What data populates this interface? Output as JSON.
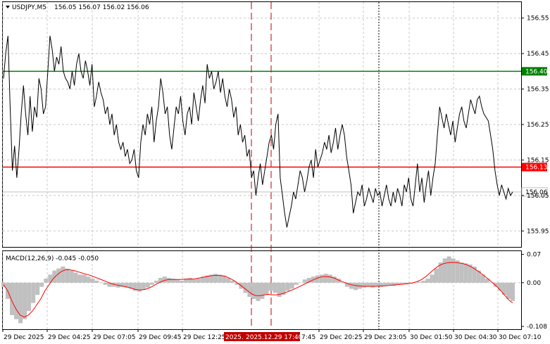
{
  "header": {
    "symbol": "USDJPY,M5",
    "ohlc": "156.05 156.07 156.02 156.06"
  },
  "colors": {
    "price_line": "#000000",
    "resistance": "#008000",
    "support": "#ff0000",
    "current": "#c0c0c0",
    "macd_hist": "#c0c0c0",
    "macd_signal": "#ff0000",
    "vline_red": "#c00000",
    "grid": "#c8c8c8"
  },
  "chart_data": [
    {
      "type": "line",
      "pane": "price",
      "y_ticks": [
        "156.55",
        "156.45",
        "156.35",
        "156.25",
        "156.15",
        "156.05",
        "155.95"
      ],
      "ylim": [
        155.905,
        156.595
      ],
      "levels": [
        {
          "value": 156.4,
          "label": "156.40",
          "color": "#008000"
        },
        {
          "value": 156.13,
          "label": "156.13",
          "color": "#ff0000"
        },
        {
          "value": 156.06,
          "label": "156.06",
          "color": "#c0c0c0"
        }
      ],
      "series": [
        {
          "values": [
            156.38,
            156.45,
            156.5,
            156.3,
            156.12,
            156.19,
            156.1,
            156.18,
            156.28,
            156.36,
            156.28,
            156.22,
            156.33,
            156.23,
            156.3,
            156.27,
            156.38,
            156.35,
            156.28,
            156.3,
            156.4,
            156.5,
            156.46,
            156.4,
            156.44,
            156.42,
            156.47,
            156.4,
            156.38,
            156.37,
            156.35,
            156.4,
            156.36,
            156.42,
            156.45,
            156.4,
            156.38,
            156.43,
            156.4,
            156.36,
            156.42,
            156.3,
            156.33,
            156.37,
            156.34,
            156.32,
            156.28,
            156.3,
            156.25,
            156.28,
            156.22,
            156.25,
            156.2,
            156.18,
            156.2,
            156.16,
            156.18,
            156.14,
            156.15,
            156.18,
            156.12,
            156.1,
            156.2,
            156.25,
            156.22,
            156.28,
            156.25,
            156.3,
            156.2,
            156.26,
            156.3,
            156.38,
            156.34,
            156.28,
            156.3,
            156.22,
            156.18,
            156.24,
            156.3,
            156.28,
            156.33,
            156.26,
            156.22,
            156.28,
            156.3,
            156.25,
            156.34,
            156.3,
            156.26,
            156.32,
            156.36,
            156.31,
            156.42,
            156.38,
            156.4,
            156.35,
            156.37,
            156.4,
            156.34,
            156.38,
            156.33,
            156.3,
            156.35,
            156.32,
            156.27,
            156.3,
            156.22,
            156.25,
            156.2,
            156.22,
            156.16,
            156.18,
            156.1,
            156.12,
            156.05,
            156.1,
            156.14,
            156.08,
            156.12,
            156.16,
            156.2,
            156.22,
            156.18,
            156.25,
            156.28,
            156.1,
            156.05,
            156.0,
            155.96,
            155.99,
            156.02,
            156.06,
            156.04,
            156.08,
            156.12,
            156.1,
            156.06,
            156.09,
            156.13,
            156.15,
            156.1,
            156.18,
            156.13,
            156.15,
            156.17,
            156.2,
            156.18,
            156.22,
            156.17,
            156.2,
            156.24,
            156.18,
            156.22,
            156.25,
            156.22,
            156.16,
            156.12,
            156.08,
            156.0,
            156.03,
            156.06,
            156.05,
            156.08,
            156.02,
            156.04,
            156.07,
            156.05,
            156.03,
            156.07,
            156.05,
            156.06,
            156.02,
            156.05,
            156.08,
            156.04,
            156.02,
            156.06,
            156.03,
            156.07,
            156.05,
            156.02,
            156.08,
            156.06,
            156.1,
            156.04,
            156.02,
            156.08,
            156.14,
            156.06,
            156.1,
            156.03,
            156.08,
            156.12,
            156.05,
            156.1,
            156.14,
            156.22,
            156.3,
            156.27,
            156.24,
            156.28,
            156.25,
            156.22,
            156.26,
            156.2,
            156.24,
            156.28,
            156.3,
            156.26,
            156.24,
            156.28,
            156.32,
            156.3,
            156.28,
            156.32,
            156.33,
            156.3,
            156.28,
            156.27,
            156.26,
            156.22,
            156.18,
            156.12,
            156.08,
            156.05,
            156.08,
            156.06,
            156.04,
            156.07,
            156.05,
            156.06
          ]
        }
      ]
    },
    {
      "type": "bar",
      "pane": "macd",
      "title": "MACD(12,26,9) -0.045 -0.050",
      "y_ticks": [
        "0.07",
        "0.00",
        "-0.108"
      ],
      "ylim": [
        -0.115,
        0.078
      ],
      "series": [
        {
          "name": "MACD",
          "type": "bar",
          "values": [
            -0.01,
            -0.04,
            -0.08,
            -0.09,
            -0.1,
            -0.09,
            -0.07,
            -0.05,
            -0.03,
            -0.01,
            0.01,
            0.02,
            0.03,
            0.035,
            0.04,
            0.035,
            0.03,
            0.025,
            0.02,
            0.02,
            0.015,
            0.01,
            0.005,
            0.0,
            -0.005,
            -0.01,
            -0.01,
            -0.012,
            -0.01,
            -0.012,
            -0.015,
            -0.02,
            -0.022,
            -0.018,
            -0.012,
            -0.005,
            0.005,
            0.012,
            0.015,
            0.012,
            0.01,
            0.008,
            0.005,
            0.01,
            0.012,
            0.008,
            0.01,
            0.015,
            0.018,
            0.02,
            0.022,
            0.02,
            0.018,
            0.012,
            0.005,
            -0.005,
            -0.015,
            -0.025,
            -0.035,
            -0.04,
            -0.045,
            -0.04,
            -0.03,
            -0.02,
            -0.025,
            -0.035,
            -0.03,
            -0.02,
            -0.015,
            -0.005,
            0.0,
            0.008,
            0.012,
            0.015,
            0.018,
            0.02,
            0.022,
            0.02,
            0.015,
            0.01,
            0.0,
            -0.01,
            -0.015,
            -0.018,
            -0.015,
            -0.012,
            -0.01,
            -0.012,
            -0.008,
            -0.01,
            -0.008,
            -0.006,
            -0.008,
            -0.005,
            -0.003,
            -0.004,
            -0.002,
            0.0,
            0.002,
            0.005,
            0.01,
            0.02,
            0.035,
            0.05,
            0.06,
            0.065,
            0.06,
            0.055,
            0.05,
            0.048,
            0.045,
            0.04,
            0.03,
            0.02,
            0.01,
            0.0,
            -0.01,
            -0.02,
            -0.03,
            -0.04,
            -0.045
          ]
        },
        {
          "name": "Signal",
          "type": "line",
          "values": [
            -0.005,
            -0.02,
            -0.045,
            -0.065,
            -0.08,
            -0.085,
            -0.08,
            -0.07,
            -0.055,
            -0.04,
            -0.02,
            -0.005,
            0.01,
            0.02,
            0.028,
            0.032,
            0.032,
            0.03,
            0.027,
            0.024,
            0.021,
            0.018,
            0.014,
            0.01,
            0.006,
            0.002,
            -0.002,
            -0.005,
            -0.007,
            -0.009,
            -0.011,
            -0.014,
            -0.017,
            -0.018,
            -0.017,
            -0.014,
            -0.009,
            -0.003,
            0.002,
            0.006,
            0.008,
            0.008,
            0.008,
            0.008,
            0.009,
            0.009,
            0.009,
            0.011,
            0.013,
            0.015,
            0.017,
            0.018,
            0.018,
            0.017,
            0.014,
            0.009,
            0.003,
            -0.004,
            -0.012,
            -0.02,
            -0.028,
            -0.032,
            -0.032,
            -0.03,
            -0.029,
            -0.03,
            -0.03,
            -0.028,
            -0.025,
            -0.021,
            -0.017,
            -0.012,
            -0.007,
            -0.002,
            0.003,
            0.008,
            0.012,
            0.015,
            0.015,
            0.014,
            0.011,
            0.006,
            0.002,
            -0.002,
            -0.005,
            -0.007,
            -0.008,
            -0.009,
            -0.009,
            -0.009,
            -0.009,
            -0.008,
            -0.008,
            -0.007,
            -0.006,
            -0.005,
            -0.004,
            -0.003,
            -0.002,
            0.0,
            0.003,
            0.008,
            0.015,
            0.024,
            0.033,
            0.041,
            0.046,
            0.049,
            0.05,
            0.05,
            0.049,
            0.047,
            0.044,
            0.039,
            0.033,
            0.026,
            0.018,
            0.01,
            0.001,
            -0.008,
            -0.018,
            -0.03,
            -0.042,
            -0.05
          ]
        }
      ]
    }
  ],
  "x_axis": {
    "ticks": [
      "29 Dec 2025",
      "29 Dec 04:25",
      "29 Dec 07:05",
      "29 Dec 09:45",
      "29 Dec 12:25",
      "29 Dec 20:25",
      "29 Dec 23:05",
      "30 Dec 01:50",
      "30 Dec 04:30",
      "30 Dec 07:10"
    ],
    "highlight_tag_left": "2025.",
    "highlight_tag": "2025.12.29 17:40",
    "highlight_tag_right": "7:45"
  }
}
